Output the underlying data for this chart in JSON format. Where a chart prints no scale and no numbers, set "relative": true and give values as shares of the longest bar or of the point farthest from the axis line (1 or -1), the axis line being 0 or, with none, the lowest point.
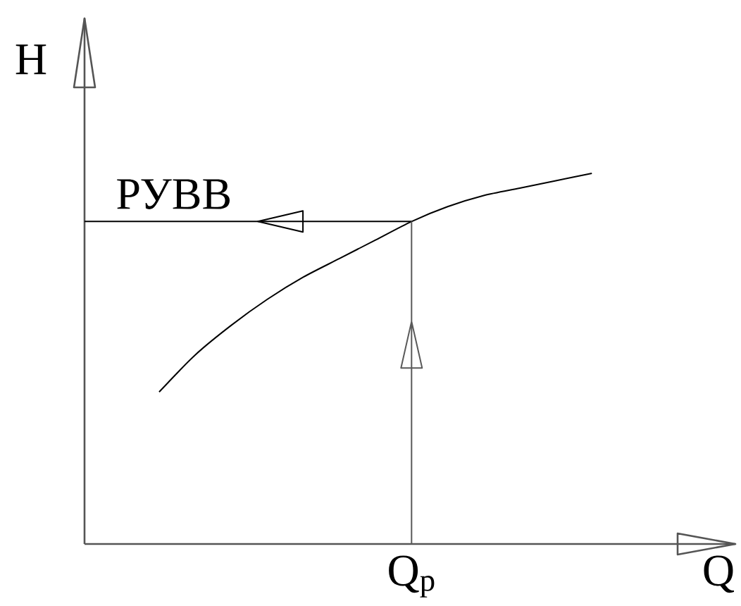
{
  "chart_data": {
    "type": "line",
    "xlabel": "Q",
    "ylabel": "H",
    "relative": true,
    "categories": [
      null,
      null,
      null,
      null,
      null,
      null,
      null,
      null,
      null,
      null,
      null,
      null,
      null
    ],
    "series": [
      {
        "color": "#000000",
        "values": [
          0.41,
          0.51,
          0.59,
          0.66,
          0.72,
          0.77,
          0.82,
          0.87,
          0.91,
          0.94,
          0.96,
          0.98,
          1
        ]
      }
    ],
    "ref_lines": [
      {
        "axis": "y",
        "value": 0.87,
        "label": "РУВВ",
        "color": "#000000"
      }
    ],
    "annotations": [
      "Q$_{р}$"
    ]
  }
}
